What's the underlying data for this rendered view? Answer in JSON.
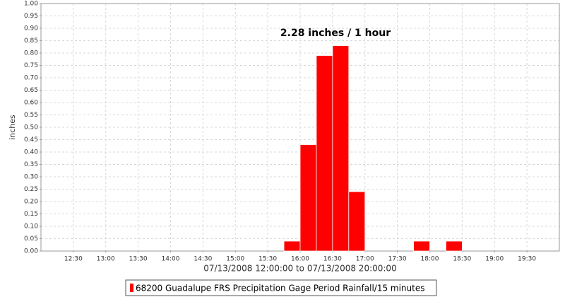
{
  "chart_data": {
    "type": "bar",
    "annotation": "2.28 inches / 1 hour",
    "y_label": "inches",
    "x_label": "07/13/2008 12:00:00 to 07/13/2008 20:00:00",
    "x": [
      "15:45",
      "16:00",
      "16:15",
      "16:30",
      "16:45",
      "17:45",
      "18:15"
    ],
    "series": [
      {
        "name": "68200 Guadalupe FRS Precipitation Gage Period Rainfall/15 minutes",
        "color": "#ff0000",
        "values": [
          0.04,
          0.43,
          0.79,
          0.83,
          0.24,
          0.04,
          0.04
        ]
      }
    ],
    "xlim": [
      "12:00",
      "20:00"
    ],
    "xticks": [
      "12:30",
      "13:00",
      "13:30",
      "14:00",
      "14:30",
      "15:00",
      "15:30",
      "16:00",
      "16:30",
      "17:00",
      "17:30",
      "18:00",
      "18:30",
      "19:00",
      "19:30"
    ],
    "ylim": [
      0,
      1
    ],
    "yticks": [
      {
        "value": 0,
        "label": "0.00"
      },
      {
        "value": 0.05,
        "label": "0.05"
      },
      {
        "value": 0.1,
        "label": "0.10"
      },
      {
        "value": 0.15,
        "label": "0.15"
      },
      {
        "value": 0.2,
        "label": "0.20"
      },
      {
        "value": 0.25,
        "label": "0.25"
      },
      {
        "value": 0.3,
        "label": "0.30"
      },
      {
        "value": 0.35,
        "label": "0.35"
      },
      {
        "value": 0.4,
        "label": "0.40"
      },
      {
        "value": 0.45,
        "label": "0.45"
      },
      {
        "value": 0.5,
        "label": "0.50"
      },
      {
        "value": 0.55,
        "label": "0.55"
      },
      {
        "value": 0.6,
        "label": "0.60"
      },
      {
        "value": 0.65,
        "label": "0.65"
      },
      {
        "value": 0.7,
        "label": "0.70"
      },
      {
        "value": 0.75,
        "label": "0.75"
      },
      {
        "value": 0.8,
        "label": "0.80"
      },
      {
        "value": 0.85,
        "label": "0.85"
      },
      {
        "value": 0.9,
        "label": "0.90"
      },
      {
        "value": 0.95,
        "label": "0.95"
      },
      {
        "value": 1,
        "label": "1.00"
      }
    ],
    "grid": true
  }
}
